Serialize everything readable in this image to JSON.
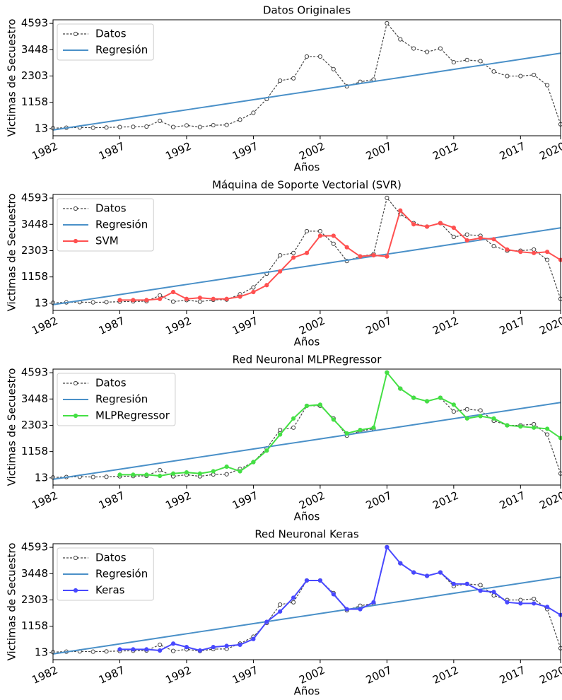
{
  "chart_data": [
    {
      "type": "line",
      "title": "Datos Originales",
      "x_label": "Años",
      "y_label": "Victimas de Secuestro",
      "x": [
        1982,
        1983,
        1984,
        1985,
        1986,
        1987,
        1988,
        1989,
        1990,
        1991,
        1992,
        1993,
        1994,
        1995,
        1996,
        1997,
        1998,
        1999,
        2000,
        2001,
        2002,
        2003,
        2004,
        2005,
        2006,
        2007,
        2008,
        2009,
        2010,
        2011,
        2012,
        2013,
        2014,
        2015,
        2016,
        2017,
        2018,
        2019,
        2020
      ],
      "xlim": [
        1982,
        2020
      ],
      "xticks": [
        1982,
        1987,
        1992,
        1997,
        2002,
        2007,
        2012,
        2017,
        2020
      ],
      "ylim": [
        -300,
        4750
      ],
      "yticks": [
        13,
        1158,
        2303,
        3448,
        4593
      ],
      "legend": "upper left",
      "series": [
        {
          "name": "Datos",
          "color": "#444444",
          "linestyle": "dashed",
          "marker": "hollow",
          "values": [
            30,
            50,
            60,
            50,
            60,
            80,
            90,
            100,
            350,
            80,
            150,
            80,
            160,
            170,
            400,
            700,
            1300,
            2100,
            2200,
            3150,
            3150,
            2600,
            1850,
            2050,
            2150,
            4600,
            3900,
            3500,
            3350,
            3500,
            2900,
            3000,
            2950,
            2500,
            2300,
            2300,
            2350,
            1900,
            200
          ]
        },
        {
          "name": "Regresión",
          "color": "#4a90c8",
          "linestyle": "solid",
          "marker": "none",
          "values": [
            -50,
            38,
            126,
            214,
            302,
            390,
            478,
            566,
            654,
            742,
            830,
            918,
            1006,
            1094,
            1182,
            1270,
            1358,
            1446,
            1534,
            1622,
            1710,
            1798,
            1886,
            1974,
            2062,
            2150,
            2238,
            2326,
            2414,
            2502,
            2590,
            2678,
            2766,
            2854,
            2942,
            3030,
            3118,
            3206,
            3294
          ]
        }
      ]
    },
    {
      "type": "line",
      "title": "Máquina de Soporte Vectorial (SVR)",
      "x_label": "Años",
      "y_label": "Victimas de Secuestro",
      "x": [
        1982,
        1983,
        1984,
        1985,
        1986,
        1987,
        1988,
        1989,
        1990,
        1991,
        1992,
        1993,
        1994,
        1995,
        1996,
        1997,
        1998,
        1999,
        2000,
        2001,
        2002,
        2003,
        2004,
        2005,
        2006,
        2007,
        2008,
        2009,
        2010,
        2011,
        2012,
        2013,
        2014,
        2015,
        2016,
        2017,
        2018,
        2019,
        2020
      ],
      "xlim": [
        1982,
        2020
      ],
      "xticks": [
        1982,
        1987,
        1992,
        1997,
        2002,
        2007,
        2012,
        2017,
        2020
      ],
      "ylim": [
        -300,
        4750
      ],
      "yticks": [
        13,
        1158,
        2303,
        3448,
        4593
      ],
      "legend": "upper left",
      "series": [
        {
          "name": "Datos",
          "color": "#444444",
          "linestyle": "dashed",
          "marker": "hollow",
          "values": [
            30,
            50,
            60,
            50,
            60,
            80,
            90,
            100,
            350,
            80,
            150,
            80,
            160,
            170,
            400,
            700,
            1300,
            2100,
            2200,
            3150,
            3150,
            2600,
            1850,
            2050,
            2150,
            4600,
            3900,
            3500,
            3350,
            3500,
            2900,
            3000,
            2950,
            2500,
            2300,
            2300,
            2350,
            1900,
            200
          ]
        },
        {
          "name": "Regresión",
          "color": "#4a90c8",
          "linestyle": "solid",
          "marker": "none",
          "values": [
            -50,
            38,
            126,
            214,
            302,
            390,
            478,
            566,
            654,
            742,
            830,
            918,
            1006,
            1094,
            1182,
            1270,
            1358,
            1446,
            1534,
            1622,
            1710,
            1798,
            1886,
            1974,
            2062,
            2150,
            2238,
            2326,
            2414,
            2502,
            2590,
            2678,
            2766,
            2854,
            2942,
            3030,
            3118,
            3206,
            3294
          ]
        },
        {
          "name": "SVM",
          "color": "#ff5050",
          "linestyle": "solid",
          "marker": "filled",
          "values": [
            null,
            null,
            null,
            null,
            null,
            150,
            150,
            150,
            200,
            500,
            200,
            250,
            200,
            200,
            300,
            500,
            800,
            1400,
            2000,
            2200,
            2950,
            2950,
            2450,
            2050,
            2100,
            2050,
            4050,
            3450,
            3350,
            3500,
            3300,
            2750,
            2850,
            2800,
            2350,
            2250,
            2200,
            2250,
            1900
          ]
        }
      ]
    },
    {
      "type": "line",
      "title": "Red Neuronal MLPRegressor",
      "x_label": "Años",
      "y_label": "Victimas de Secuestro",
      "x": [
        1982,
        1983,
        1984,
        1985,
        1986,
        1987,
        1988,
        1989,
        1990,
        1991,
        1992,
        1993,
        1994,
        1995,
        1996,
        1997,
        1998,
        1999,
        2000,
        2001,
        2002,
        2003,
        2004,
        2005,
        2006,
        2007,
        2008,
        2009,
        2010,
        2011,
        2012,
        2013,
        2014,
        2015,
        2016,
        2017,
        2018,
        2019,
        2020
      ],
      "xlim": [
        1982,
        2020
      ],
      "xticks": [
        1982,
        1987,
        1992,
        1997,
        2002,
        2007,
        2012,
        2017,
        2020
      ],
      "ylim": [
        -300,
        4750
      ],
      "yticks": [
        13,
        1158,
        2303,
        3448,
        4593
      ],
      "legend": "upper left",
      "series": [
        {
          "name": "Datos",
          "color": "#444444",
          "linestyle": "dashed",
          "marker": "hollow",
          "values": [
            30,
            50,
            60,
            50,
            60,
            80,
            90,
            100,
            350,
            80,
            150,
            80,
            160,
            170,
            400,
            700,
            1300,
            2100,
            2200,
            3150,
            3150,
            2600,
            1850,
            2050,
            2150,
            4600,
            3900,
            3500,
            3350,
            3500,
            2900,
            3000,
            2950,
            2500,
            2300,
            2300,
            2350,
            1900,
            200
          ]
        },
        {
          "name": "Regresión",
          "color": "#4a90c8",
          "linestyle": "solid",
          "marker": "none",
          "values": [
            -50,
            38,
            126,
            214,
            302,
            390,
            478,
            566,
            654,
            742,
            830,
            918,
            1006,
            1094,
            1182,
            1270,
            1358,
            1446,
            1534,
            1622,
            1710,
            1798,
            1886,
            1974,
            2062,
            2150,
            2238,
            2326,
            2414,
            2502,
            2590,
            2678,
            2766,
            2854,
            2942,
            3030,
            3118,
            3206,
            3294
          ]
        },
        {
          "name": "MLPRegressor",
          "color": "#44e044",
          "linestyle": "solid",
          "marker": "filled",
          "values": [
            null,
            null,
            null,
            null,
            null,
            150,
            150,
            150,
            100,
            200,
            250,
            200,
            300,
            500,
            300,
            700,
            1200,
            1900,
            2600,
            3150,
            3200,
            2550,
            1950,
            2100,
            2200,
            4600,
            3900,
            3500,
            3350,
            3500,
            3200,
            2600,
            2700,
            2600,
            2300,
            2250,
            2200,
            2150,
            1750
          ]
        }
      ]
    },
    {
      "type": "line",
      "title": "Red Neuronal Keras",
      "x_label": "Años",
      "y_label": "Victimas de Secuestro",
      "x": [
        1982,
        1983,
        1984,
        1985,
        1986,
        1987,
        1988,
        1989,
        1990,
        1991,
        1992,
        1993,
        1994,
        1995,
        1996,
        1997,
        1998,
        1999,
        2000,
        2001,
        2002,
        2003,
        2004,
        2005,
        2006,
        2007,
        2008,
        2009,
        2010,
        2011,
        2012,
        2013,
        2014,
        2015,
        2016,
        2017,
        2018,
        2019,
        2020
      ],
      "xlim": [
        1982,
        2020
      ],
      "xticks": [
        1982,
        1987,
        1992,
        1997,
        2002,
        2007,
        2012,
        2017,
        2020
      ],
      "ylim": [
        -300,
        4750
      ],
      "yticks": [
        13,
        1158,
        2303,
        3448,
        4593
      ],
      "legend": "upper left",
      "series": [
        {
          "name": "Datos",
          "color": "#444444",
          "linestyle": "dashed",
          "marker": "hollow",
          "values": [
            30,
            50,
            60,
            50,
            60,
            80,
            90,
            100,
            350,
            80,
            150,
            80,
            160,
            170,
            400,
            700,
            1300,
            2100,
            2200,
            3150,
            3150,
            2600,
            1850,
            2050,
            2150,
            4600,
            3900,
            3500,
            3350,
            3500,
            2900,
            3000,
            2950,
            2500,
            2300,
            2300,
            2350,
            1900,
            200
          ]
        },
        {
          "name": "Regresión",
          "color": "#4a90c8",
          "linestyle": "solid",
          "marker": "none",
          "values": [
            -50,
            38,
            126,
            214,
            302,
            390,
            478,
            566,
            654,
            742,
            830,
            918,
            1006,
            1094,
            1182,
            1270,
            1358,
            1446,
            1534,
            1622,
            1710,
            1798,
            1886,
            1974,
            2062,
            2150,
            2238,
            2326,
            2414,
            2502,
            2590,
            2678,
            2766,
            2854,
            2942,
            3030,
            3118,
            3206,
            3294
          ]
        },
        {
          "name": "Keras",
          "color": "#4848ff",
          "linestyle": "solid",
          "marker": "filled",
          "values": [
            null,
            null,
            null,
            null,
            null,
            150,
            150,
            150,
            100,
            400,
            250,
            100,
            250,
            300,
            350,
            600,
            1350,
            1800,
            2400,
            3150,
            3150,
            2550,
            1900,
            1900,
            2200,
            4600,
            3900,
            3500,
            3350,
            3500,
            3000,
            3000,
            2700,
            2650,
            2200,
            2150,
            2150,
            2000,
            1650
          ]
        }
      ]
    }
  ]
}
